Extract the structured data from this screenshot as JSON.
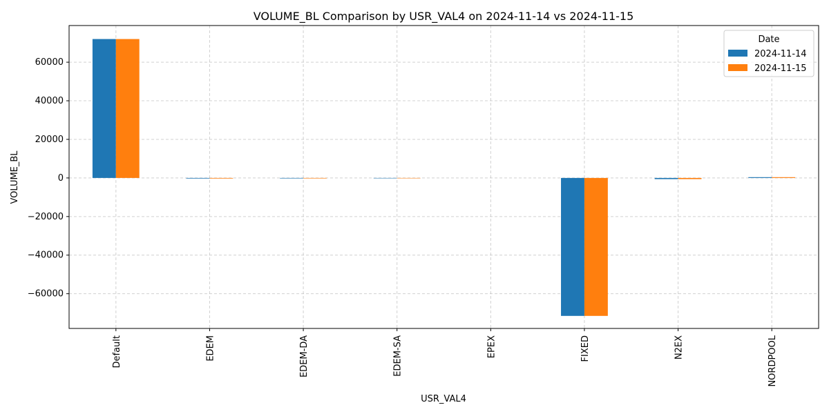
{
  "chart_data": {
    "type": "bar",
    "title": "VOLUME_BL Comparison by USR_VAL4 on 2024-11-14 vs 2024-11-15",
    "xlabel": "USR_VAL4",
    "ylabel": "VOLUME_BL",
    "categories": [
      "Default",
      "EDEM",
      "EDEM-DA",
      "EDEM-SA",
      "EPEX",
      "FIXED",
      "N2EX",
      "NORDPOOL"
    ],
    "series": [
      {
        "name": "2024-11-14",
        "color": "#1f77b4",
        "values": [
          72000,
          -300,
          -250,
          -200,
          0,
          -71500,
          -600,
          400
        ]
      },
      {
        "name": "2024-11-15",
        "color": "#ff7f0e",
        "values": [
          72000,
          -300,
          -250,
          -200,
          0,
          -71500,
          -600,
          400
        ]
      }
    ],
    "ylim": [
      -78000,
      79000
    ],
    "yticks": [
      -60000,
      -40000,
      -20000,
      0,
      20000,
      40000,
      60000
    ],
    "ytick_labels": [
      "−60000",
      "−40000",
      "−20000",
      "0",
      "20000",
      "40000",
      "60000"
    ],
    "grid": true,
    "legend": {
      "title": "Date",
      "position": "top-right"
    }
  }
}
